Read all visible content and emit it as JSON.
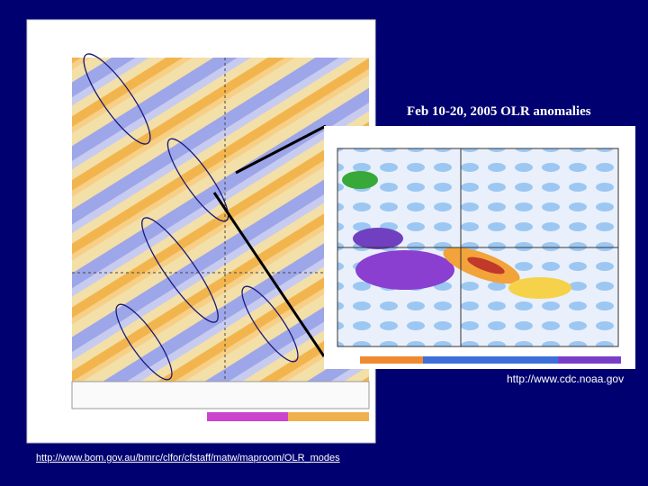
{
  "slide": {
    "inset_title": "Feb 10-20, 2005 OLR anomalies",
    "inset_source": "http://www.cdc.noaa.gov",
    "main_source": "http://www.bom.gov.au/bmrc/clfor/cfstaff/matw/maproom/OLR_modes"
  }
}
